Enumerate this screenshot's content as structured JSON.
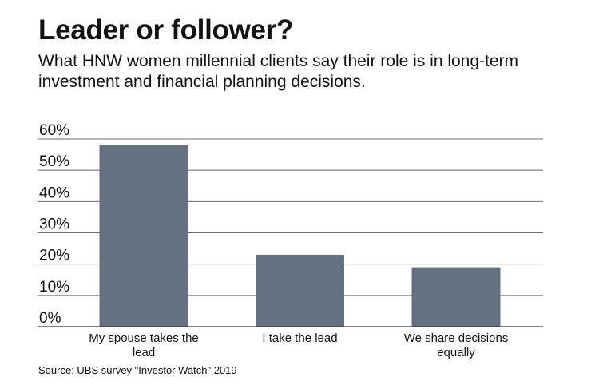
{
  "title": "Leader or follower?",
  "subtitle": "What HNW women millennial clients say their role is in long-term investment and financial planning decisions.",
  "source": "Source: UBS survey \"Investor Watch\" 2019",
  "chart_data": {
    "type": "bar",
    "title": "Leader or follower?",
    "categories": [
      [
        "My spouse takes the",
        "lead"
      ],
      [
        "I take the lead"
      ],
      [
        "We share decisions",
        "equally"
      ]
    ],
    "values": [
      58,
      23,
      19
    ],
    "ylim": [
      0,
      60
    ],
    "yticks": [
      "0%",
      "10%",
      "20%",
      "30%",
      "40%",
      "50%",
      "60%"
    ],
    "grid": true,
    "bar_color": "#637183",
    "grid_color": "#6b6b6b"
  }
}
